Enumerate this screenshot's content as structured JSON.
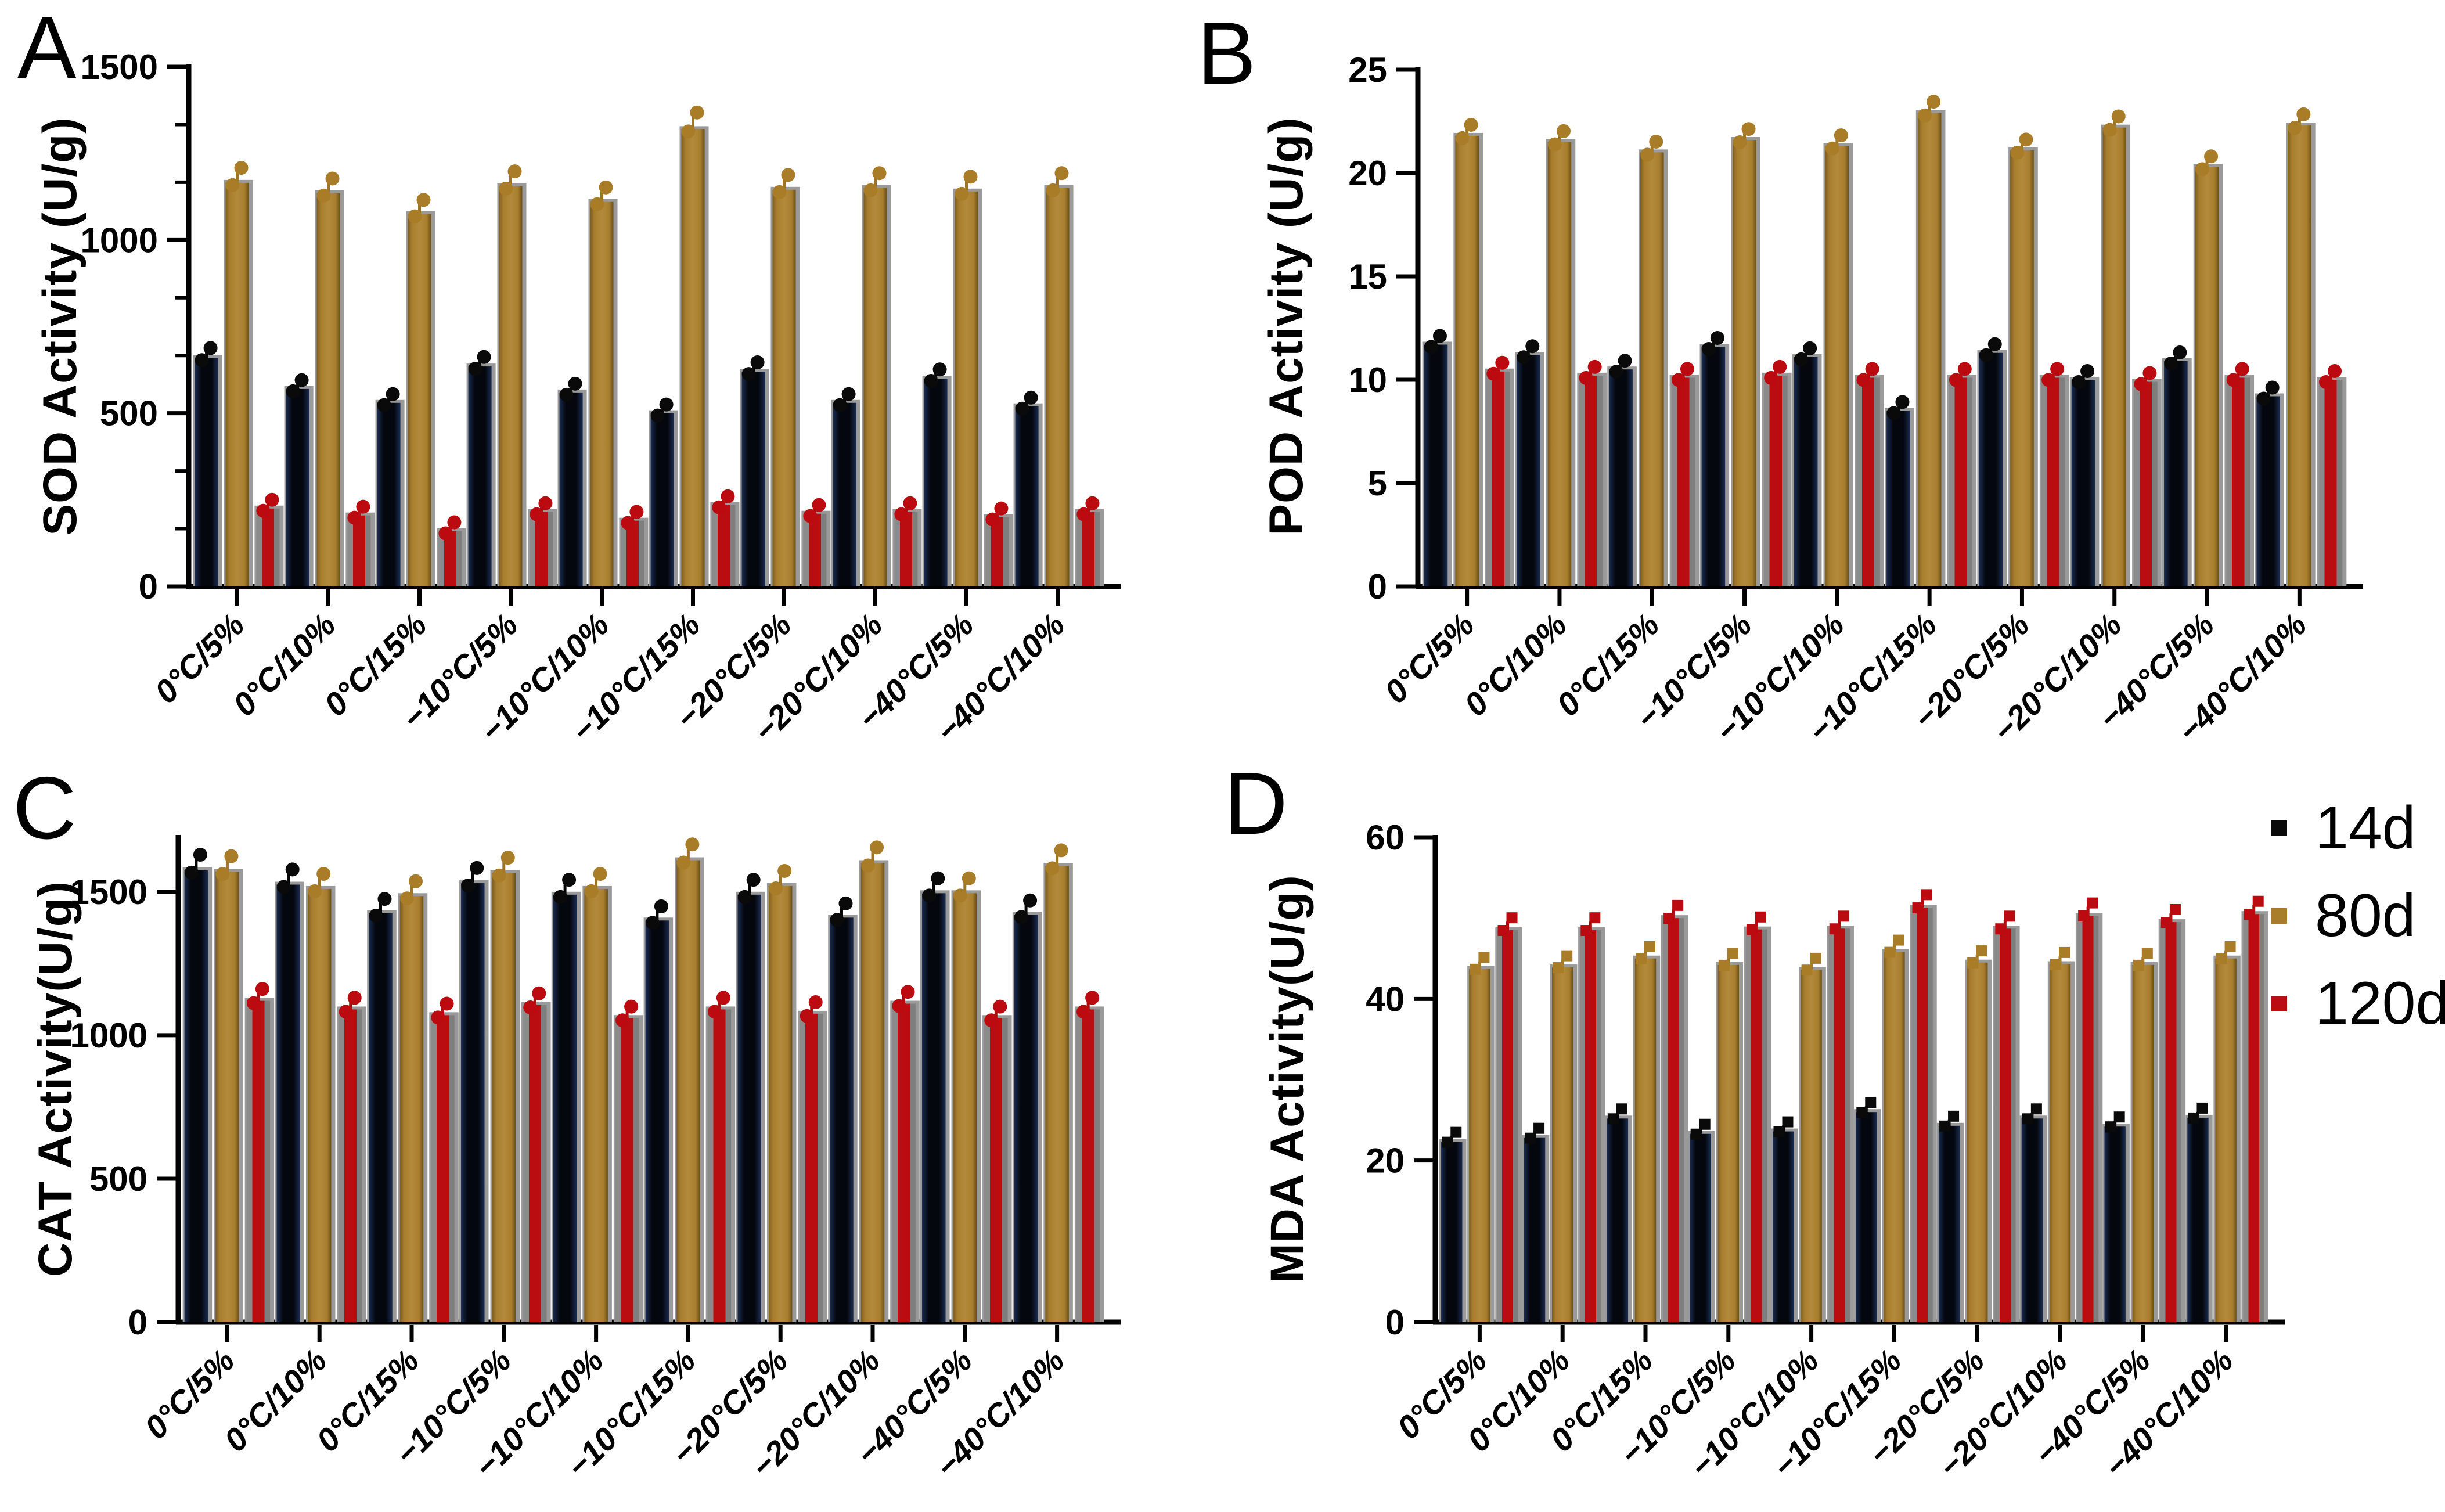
{
  "figure": {
    "legend": {
      "items": [
        {
          "label": "14d",
          "color": "#0a0a0a"
        },
        {
          "label": "80d",
          "color": "#a97e2b"
        },
        {
          "label": "120d",
          "color": "#b90d12"
        }
      ]
    },
    "series_colors": {
      "d14_edge": "#1a2c52",
      "d14_core": "#04070d",
      "d80_light": "#b3893b",
      "d80_dark": "#6b4f17",
      "d120_red": "#b90d12",
      "d120_gray": "#8b8b8b",
      "axis": "#000000",
      "shadow": "#9a9a9a"
    }
  },
  "chart_data": [
    {
      "type": "bar",
      "panel": "A",
      "title": "SOD Activity",
      "ylabel": "SOD Activity (U/g)",
      "xlabel": "",
      "ylim": [
        0,
        1500
      ],
      "yticks": [
        0,
        500,
        1000,
        1500
      ],
      "grid": false,
      "legend_position": "none",
      "categories": [
        "0°C/5%",
        "0°C/10%",
        "0°C/15%",
        "−10°C/5%",
        "−10°C/10%",
        "−10°C/15%",
        "−20°C/5%",
        "−20°C/10%",
        "−40°C/5%",
        "−40°C/10%"
      ],
      "series": [
        {
          "name": "14d",
          "values": [
            660,
            570,
            530,
            635,
            560,
            500,
            620,
            530,
            600,
            520
          ]
        },
        {
          "name": "80d",
          "values": [
            1165,
            1135,
            1075,
            1155,
            1110,
            1320,
            1145,
            1150,
            1140,
            1150
          ]
        },
        {
          "name": "120d",
          "values": [
            225,
            205,
            160,
            215,
            190,
            235,
            210,
            215,
            200,
            215
          ]
        }
      ]
    },
    {
      "type": "bar",
      "panel": "B",
      "title": "POD Activity",
      "ylabel": "POD Activity (U/g)",
      "xlabel": "",
      "ylim": [
        0,
        25
      ],
      "yticks": [
        0,
        5,
        10,
        15,
        20,
        25
      ],
      "grid": false,
      "legend_position": "none",
      "categories": [
        "0°C/5%",
        "0°C/10%",
        "0°C/15%",
        "−10°C/5%",
        "−10°C/10%",
        "−10°C/15%",
        "−20°C/5%",
        "−20°C/10%",
        "−40°C/5%",
        "−40°C/10%"
      ],
      "series": [
        {
          "name": "14d",
          "values": [
            11.7,
            11.2,
            10.5,
            11.6,
            11.1,
            8.5,
            11.3,
            10.0,
            10.9,
            9.2
          ]
        },
        {
          "name": "80d",
          "values": [
            21.8,
            21.5,
            21.0,
            21.6,
            21.3,
            22.9,
            21.1,
            22.2,
            20.3,
            22.3
          ]
        },
        {
          "name": "120d",
          "values": [
            10.4,
            10.2,
            10.1,
            10.2,
            10.1,
            10.1,
            10.1,
            9.9,
            10.1,
            10.0
          ]
        }
      ]
    },
    {
      "type": "bar",
      "panel": "C",
      "title": "CAT Activity",
      "ylabel": "CAT Activity(U/g)",
      "xlabel": "",
      "ylim": [
        0,
        1690
      ],
      "yticks": [
        0,
        500,
        1000,
        1500
      ],
      "grid": false,
      "legend_position": "none",
      "categories": [
        "0°C/5%",
        "0°C/10%",
        "0°C/15%",
        "−10°C/5%",
        "−10°C/10%",
        "−10°C/15%",
        "−20°C/5%",
        "−20°C/10%",
        "−40°C/5%",
        "−40°C/10%"
      ],
      "series": [
        {
          "name": "14d",
          "values": [
            1575,
            1525,
            1425,
            1530,
            1490,
            1400,
            1490,
            1410,
            1495,
            1420
          ]
        },
        {
          "name": "80d",
          "values": [
            1570,
            1510,
            1485,
            1565,
            1510,
            1610,
            1520,
            1600,
            1495,
            1590
          ]
        },
        {
          "name": "120d",
          "values": [
            1120,
            1090,
            1070,
            1105,
            1060,
            1090,
            1075,
            1110,
            1060,
            1090
          ]
        }
      ]
    },
    {
      "type": "bar",
      "panel": "D",
      "title": "MDA Activity",
      "ylabel": "MDA Activity(U/g)",
      "xlabel": "",
      "ylim": [
        0,
        60
      ],
      "yticks": [
        0,
        20,
        40,
        60
      ],
      "grid": false,
      "legend_position": "right-top",
      "categories": [
        "0°C/5%",
        "0°C/10%",
        "0°C/15%",
        "−10°C/5%",
        "−10°C/10%",
        "−10°C/15%",
        "−20°C/5%",
        "−20°C/10%",
        "−40°C/5%",
        "−40°C/10%"
      ],
      "series": [
        {
          "name": "14d",
          "values": [
            22.3,
            22.8,
            25.2,
            23.3,
            23.6,
            26.0,
            24.3,
            25.2,
            24.2,
            25.3
          ]
        },
        {
          "name": "80d",
          "values": [
            43.7,
            43.9,
            45.0,
            44.2,
            43.6,
            45.8,
            44.5,
            44.3,
            44.2,
            45.0
          ]
        },
        {
          "name": "120d",
          "values": [
            48.5,
            48.5,
            50.0,
            48.6,
            48.7,
            51.3,
            48.7,
            50.3,
            49.5,
            50.5
          ]
        }
      ]
    }
  ]
}
